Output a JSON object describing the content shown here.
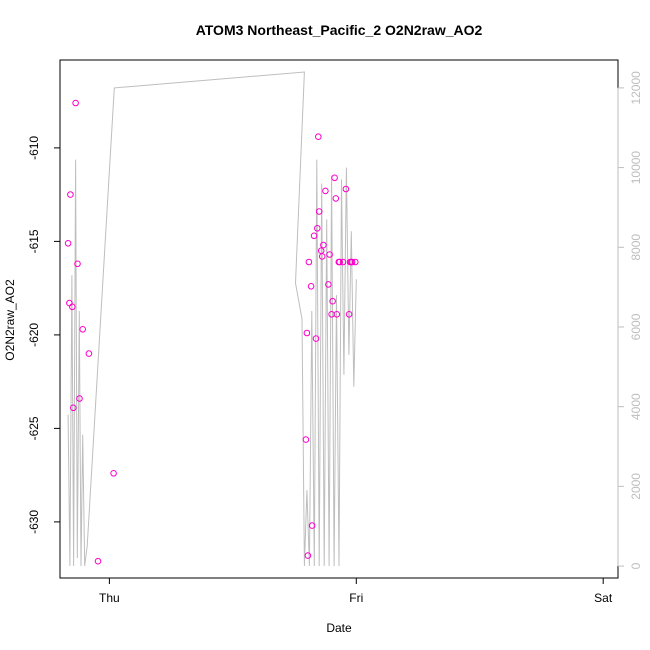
{
  "chart_data": {
    "type": "scatter",
    "title": "ATOM3 Northeast_Pacific_2 O2N2raw_AO2",
    "xlabel": "Date",
    "ylabel": "O2N2raw_AO2",
    "x_ticks": [
      {
        "label": "Thu",
        "value": 0
      },
      {
        "label": "Fri",
        "value": 1
      },
      {
        "label": "Sat",
        "value": 2
      }
    ],
    "x_range": [
      -0.2,
      2.06
    ],
    "y_left_range": [
      -633,
      -605.3
    ],
    "y_left_ticks": [
      -610,
      -615,
      -620,
      -625,
      -630
    ],
    "y_right_range": [
      -300,
      12700
    ],
    "y_right_ticks": [
      0,
      2000,
      4000,
      6000,
      8000,
      10000,
      12000
    ],
    "colors": {
      "points": "#ff00cc",
      "line": "#bebebe",
      "axis": "#000000",
      "right_axis": "#bebebe"
    },
    "series": [
      {
        "name": "",
        "kind": "points",
        "axis": "left",
        "x": [
          -0.167,
          -0.162,
          -0.158,
          -0.15,
          -0.146,
          -0.137,
          -0.129,
          -0.121,
          -0.108,
          -0.083,
          -0.046,
          0.017,
          0.796,
          0.817,
          0.8,
          0.804,
          0.808,
          0.821,
          0.829,
          0.837,
          0.842,
          0.846,
          0.85,
          0.858,
          0.862,
          0.867,
          0.875,
          0.887,
          0.892,
          0.9,
          0.904,
          0.912,
          0.917,
          0.921,
          0.929,
          0.933,
          0.946,
          0.958,
          0.971,
          0.975,
          0.979,
          0.983,
          0.996
        ],
        "y": [
          -615.1,
          -618.3,
          -612.5,
          -618.5,
          -623.9,
          -607.6,
          -616.2,
          -623.4,
          -619.7,
          -621.0,
          -632.1,
          -627.4,
          -625.6,
          -617.4,
          -619.9,
          -631.8,
          -616.1,
          -630.2,
          -614.7,
          -620.2,
          -614.3,
          -609.4,
          -613.4,
          -615.5,
          -615.8,
          -615.2,
          -612.3,
          -617.3,
          -615.7,
          -618.9,
          -618.2,
          -611.6,
          -612.7,
          -618.9,
          -616.1,
          -616.1,
          -616.1,
          -612.2,
          -618.9,
          -616.1,
          -616.1,
          -616.1,
          -616.1
        ]
      },
      {
        "name": "",
        "kind": "line",
        "axis": "right",
        "x": [
          -0.167,
          -0.16,
          -0.152,
          -0.145,
          -0.137,
          -0.13,
          -0.122,
          -0.115,
          -0.108,
          -0.1,
          -0.09,
          0.02,
          0.79,
          0.754,
          0.78,
          0.79,
          0.8,
          0.81,
          0.82,
          0.83,
          0.84,
          0.85,
          0.86,
          0.87,
          0.88,
          0.89,
          0.9,
          0.91,
          0.92,
          0.93,
          0.94,
          0.95,
          0.96,
          0.97,
          0.98,
          0.99,
          1.0
        ],
        "y": [
          3800,
          0,
          7300,
          0,
          10200,
          200,
          6400,
          0,
          3300,
          0,
          500,
          12000,
          12400,
          7100,
          6200,
          0,
          1900,
          0,
          6400,
          0,
          10200,
          0,
          9600,
          0,
          8700,
          0,
          9800,
          0,
          6800,
          0,
          9700,
          4800,
          10000,
          5300,
          8400,
          4500,
          7200
        ]
      }
    ]
  }
}
